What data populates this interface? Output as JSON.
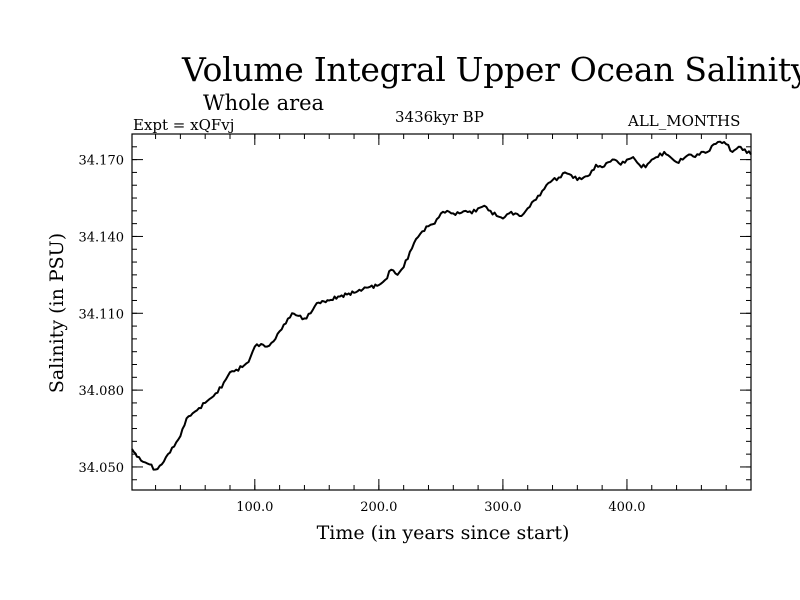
{
  "header": {
    "title": "Volume Integral Upper Ocean Salinity",
    "subtitle": "Whole area",
    "experiment": "Expt = xQFvj",
    "period": "3436kyr BP",
    "months": "ALL_MONTHS"
  },
  "chart_data": {
    "type": "line",
    "title": "Volume Integral Upper Ocean Salinity",
    "xlabel": "Time (in years since start)",
    "ylabel": "Salinity (in PSU)",
    "xlim": [
      1,
      500
    ],
    "ylim": [
      34.041,
      34.18
    ],
    "xticks": [
      100,
      200,
      300,
      400
    ],
    "xtick_labels": [
      "100.0",
      "200.0",
      "300.0",
      "400.0"
    ],
    "yticks": [
      34.05,
      34.08,
      34.11,
      34.14,
      34.17
    ],
    "ytick_labels": [
      "34.050",
      "34.080",
      "34.110",
      "34.140",
      "34.170"
    ],
    "grid": false,
    "series": [
      {
        "name": "Salinity",
        "x": [
          1,
          5,
          10,
          15,
          20,
          25,
          30,
          35,
          40,
          45,
          50,
          55,
          60,
          65,
          70,
          75,
          80,
          85,
          90,
          95,
          100,
          105,
          110,
          115,
          120,
          125,
          130,
          135,
          140,
          145,
          150,
          160,
          170,
          180,
          190,
          200,
          205,
          210,
          215,
          220,
          225,
          230,
          235,
          240,
          245,
          250,
          255,
          260,
          265,
          270,
          275,
          280,
          285,
          290,
          295,
          300,
          305,
          310,
          315,
          320,
          325,
          330,
          335,
          340,
          345,
          350,
          355,
          360,
          365,
          370,
          375,
          380,
          385,
          390,
          395,
          400,
          405,
          410,
          415,
          420,
          425,
          430,
          435,
          440,
          445,
          450,
          455,
          460,
          465,
          470,
          475,
          480,
          485,
          490,
          495,
          500
        ],
        "y": [
          34.057,
          34.054,
          34.052,
          34.051,
          34.049,
          34.051,
          34.055,
          34.058,
          34.062,
          34.069,
          34.071,
          34.073,
          34.075,
          34.077,
          34.079,
          34.083,
          34.087,
          34.088,
          34.089,
          34.091,
          34.097,
          34.098,
          34.097,
          34.099,
          34.103,
          34.106,
          34.11,
          34.109,
          34.108,
          34.11,
          34.114,
          34.115,
          34.117,
          34.118,
          34.12,
          34.121,
          34.123,
          34.127,
          34.125,
          34.128,
          34.134,
          34.139,
          34.142,
          34.144,
          34.145,
          34.149,
          34.15,
          34.149,
          34.149,
          34.15,
          34.149,
          34.151,
          34.152,
          34.15,
          34.148,
          34.147,
          34.149,
          34.149,
          34.148,
          34.151,
          34.154,
          34.156,
          34.16,
          34.162,
          34.163,
          34.165,
          34.164,
          34.162,
          34.163,
          34.164,
          34.168,
          34.167,
          34.169,
          34.17,
          34.168,
          34.17,
          34.171,
          34.168,
          34.167,
          34.17,
          34.171,
          34.173,
          34.171,
          34.169,
          34.17,
          34.172,
          34.171,
          34.173,
          34.173,
          34.176,
          34.177,
          34.176,
          34.173,
          34.175,
          34.174,
          34.172
        ]
      }
    ]
  }
}
